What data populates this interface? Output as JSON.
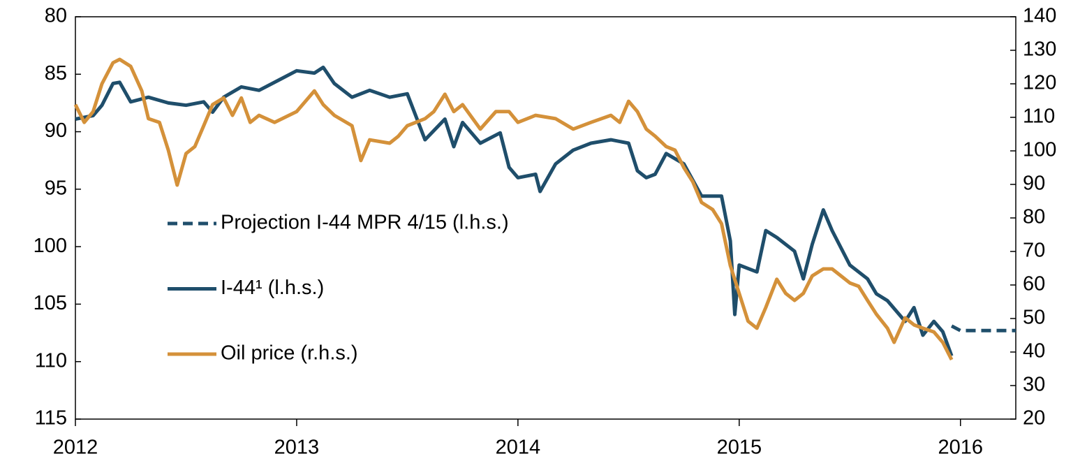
{
  "chart_data": {
    "type": "line",
    "xlim": [
      2012,
      2016.25
    ],
    "xticks": [
      2012,
      2013,
      2014,
      2015,
      2016
    ],
    "ylim": [
      80,
      115
    ],
    "yticks": [
      80,
      85,
      90,
      95,
      100,
      105,
      110,
      115
    ],
    "y_reversed": true,
    "y2lim": [
      20,
      140
    ],
    "y2ticks": [
      20,
      30,
      40,
      50,
      60,
      70,
      80,
      90,
      100,
      110,
      120,
      130,
      140
    ],
    "grid": false,
    "series": [
      {
        "name": "Projection I-44 MPR 4/15 (l.h.s.)",
        "color": "#1f4e6b",
        "dashed": true,
        "x": [
          2015.96,
          2016.0,
          2016.25
        ],
        "values": [
          106.9,
          107.3,
          107.3
        ]
      },
      {
        "name": "I-44¹ (l.h.s.)",
        "color": "#1f4e6b",
        "x": [
          2012.0,
          2012.08,
          2012.12,
          2012.17,
          2012.2,
          2012.25,
          2012.33,
          2012.42,
          2012.5,
          2012.58,
          2012.62,
          2012.67,
          2012.75,
          2012.83,
          2012.92,
          2013.0,
          2013.08,
          2013.12,
          2013.17,
          2013.25,
          2013.33,
          2013.42,
          2013.5,
          2013.58,
          2013.67,
          2013.71,
          2013.75,
          2013.83,
          2013.92,
          2013.96,
          2014.0,
          2014.08,
          2014.1,
          2014.17,
          2014.25,
          2014.33,
          2014.42,
          2014.5,
          2014.54,
          2014.58,
          2014.62,
          2014.67,
          2014.75,
          2014.83,
          2014.92,
          2014.96,
          2014.98,
          2015.0,
          2015.08,
          2015.12,
          2015.17,
          2015.25,
          2015.29,
          2015.33,
          2015.38,
          2015.42,
          2015.5,
          2015.58,
          2015.62,
          2015.67,
          2015.75,
          2015.79,
          2015.83,
          2015.88,
          2015.92,
          2015.96
        ],
        "values": [
          88.9,
          88.6,
          87.7,
          85.8,
          85.7,
          87.4,
          87.0,
          87.5,
          87.7,
          87.4,
          88.3,
          87.0,
          86.1,
          86.4,
          85.5,
          84.7,
          84.9,
          84.4,
          85.8,
          87.0,
          86.4,
          87.0,
          86.7,
          90.7,
          88.9,
          91.3,
          89.2,
          91.0,
          90.1,
          93.1,
          94.0,
          93.7,
          95.2,
          92.8,
          91.6,
          91.0,
          90.7,
          91.0,
          93.4,
          94.0,
          93.7,
          91.9,
          92.8,
          95.6,
          95.6,
          99.5,
          105.9,
          101.6,
          102.2,
          98.6,
          99.2,
          100.4,
          102.8,
          99.8,
          96.8,
          98.6,
          101.6,
          102.8,
          104.1,
          104.7,
          106.5,
          105.3,
          107.7,
          106.5,
          107.4,
          109.5
        ]
      },
      {
        "name": "Oil price (r.h.s.)",
        "color": "#d4913a",
        "axis": "y2",
        "x": [
          2012.0,
          2012.04,
          2012.08,
          2012.12,
          2012.17,
          2012.2,
          2012.25,
          2012.3,
          2012.33,
          2012.38,
          2012.42,
          2012.46,
          2012.5,
          2012.54,
          2012.58,
          2012.62,
          2012.67,
          2012.71,
          2012.75,
          2012.79,
          2012.83,
          2012.9,
          2013.0,
          2013.08,
          2013.12,
          2013.17,
          2013.25,
          2013.29,
          2013.33,
          2013.42,
          2013.46,
          2013.5,
          2013.58,
          2013.62,
          2013.67,
          2013.71,
          2013.75,
          2013.83,
          2013.9,
          2013.96,
          2014.0,
          2014.08,
          2014.17,
          2014.25,
          2014.33,
          2014.42,
          2014.46,
          2014.5,
          2014.54,
          2014.58,
          2014.62,
          2014.67,
          2014.71,
          2014.75,
          2014.79,
          2014.83,
          2014.88,
          2014.92,
          2014.96,
          2015.0,
          2015.04,
          2015.08,
          2015.12,
          2015.17,
          2015.21,
          2015.25,
          2015.29,
          2015.33,
          2015.38,
          2015.42,
          2015.46,
          2015.5,
          2015.54,
          2015.58,
          2015.62,
          2015.67,
          2015.7,
          2015.75,
          2015.79,
          2015.83,
          2015.88,
          2015.92,
          2015.96
        ],
        "values": [
          113.8,
          108.5,
          111.7,
          120,
          126.3,
          127.3,
          125.2,
          117.9,
          109.6,
          108.5,
          100.2,
          89.8,
          99.2,
          101.3,
          107.5,
          113.8,
          115.8,
          110.6,
          115.8,
          108.5,
          110.6,
          108.5,
          111.7,
          117.9,
          113.8,
          110.6,
          107.5,
          97.1,
          103.3,
          102.3,
          104.4,
          107.5,
          109.6,
          111.7,
          116.9,
          111.7,
          113.8,
          106.5,
          111.7,
          111.7,
          108.5,
          110.6,
          109.6,
          106.5,
          108.5,
          110.6,
          108.5,
          114.8,
          111.7,
          106.5,
          104.4,
          101.3,
          100.2,
          95.0,
          90.8,
          84.6,
          82.5,
          78.3,
          65.8,
          57.5,
          49.2,
          47.1,
          53.3,
          61.7,
          57.5,
          55.4,
          57.5,
          62.7,
          64.8,
          64.8,
          62.7,
          60.6,
          59.6,
          55.4,
          51.3,
          47.1,
          42.9,
          50.2,
          48.1,
          47.1,
          46.0,
          42.9,
          37.7
        ]
      }
    ]
  }
}
